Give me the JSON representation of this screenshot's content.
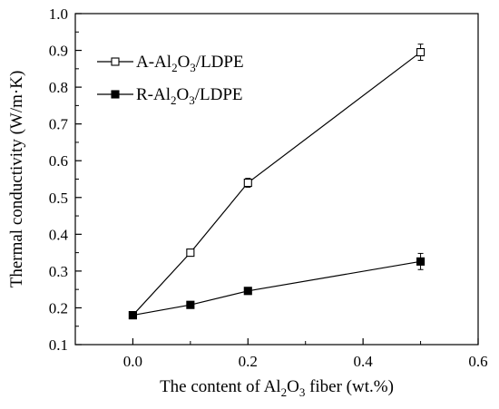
{
  "chart_data": {
    "type": "line",
    "xlabel": {
      "before": "The content of Al",
      "sub1": "2",
      "mid": "O",
      "sub2": "3",
      "after": " fiber (wt.%)"
    },
    "ylabel": "Thermal conductivity (W/m·K)",
    "xlim": [
      -0.1,
      0.6
    ],
    "ylim": [
      0.1,
      1.0
    ],
    "xticks": [
      0.0,
      0.2,
      0.4,
      0.6
    ],
    "xtick_labels": [
      "0.0",
      "0.2",
      "0.4",
      "0.6"
    ],
    "yticks": [
      0.1,
      0.2,
      0.3,
      0.4,
      0.5,
      0.6,
      0.7,
      0.8,
      0.9,
      1.0
    ],
    "ytick_labels": [
      "0.1",
      "0.2",
      "0.3",
      "0.4",
      "0.5",
      "0.6",
      "0.7",
      "0.8",
      "0.9",
      "1.0"
    ],
    "grid": false,
    "legend_position": "top-left",
    "series": [
      {
        "name": {
          "before": "A-Al",
          "sub1": "2",
          "mid": "O",
          "sub2": "3",
          "after": "/LDPE"
        },
        "marker": "open-square",
        "x": [
          0.0,
          0.1,
          0.2,
          0.5
        ],
        "y": [
          0.18,
          0.35,
          0.54,
          0.895
        ],
        "err": [
          0.0,
          0.008,
          0.012,
          0.022
        ]
      },
      {
        "name": {
          "before": "R-Al",
          "sub1": "2",
          "mid": "O",
          "sub2": "3",
          "after": "/LDPE"
        },
        "marker": "filled-square",
        "x": [
          0.0,
          0.1,
          0.2,
          0.5
        ],
        "y": [
          0.18,
          0.208,
          0.246,
          0.326
        ],
        "err": [
          0.0,
          0.005,
          0.005,
          0.022
        ]
      }
    ]
  }
}
